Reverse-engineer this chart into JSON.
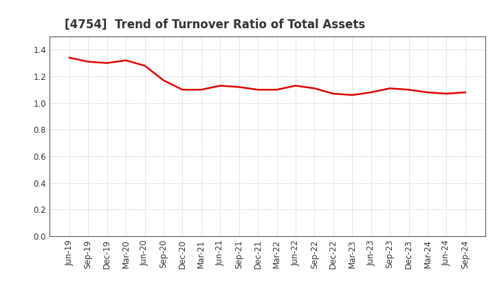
{
  "title": "[4754]  Trend of Turnover Ratio of Total Assets",
  "x_labels": [
    "Jun-19",
    "Sep-19",
    "Dec-19",
    "Mar-20",
    "Jun-20",
    "Sep-20",
    "Dec-20",
    "Mar-21",
    "Jun-21",
    "Sep-21",
    "Dec-21",
    "Mar-22",
    "Jun-22",
    "Sep-22",
    "Dec-22",
    "Mar-23",
    "Jun-23",
    "Sep-23",
    "Dec-23",
    "Mar-24",
    "Jun-24",
    "Sep-24"
  ],
  "values": [
    1.34,
    1.31,
    1.3,
    1.32,
    1.28,
    1.17,
    1.1,
    1.1,
    1.13,
    1.12,
    1.1,
    1.1,
    1.13,
    1.11,
    1.07,
    1.06,
    1.08,
    1.11,
    1.1,
    1.08,
    1.07,
    1.08
  ],
  "line_color": "#dd0000",
  "line_width": 1.8,
  "ylim": [
    0.0,
    1.5
  ],
  "yticks": [
    0.0,
    0.2,
    0.4,
    0.6,
    0.8,
    1.0,
    1.2,
    1.4
  ],
  "bg_color": "#ffffff",
  "plot_bg_color": "#ffffff",
  "grid_color": "#bbbbbb",
  "title_fontsize": 12,
  "tick_fontsize": 8.5,
  "title_color": "#333333"
}
